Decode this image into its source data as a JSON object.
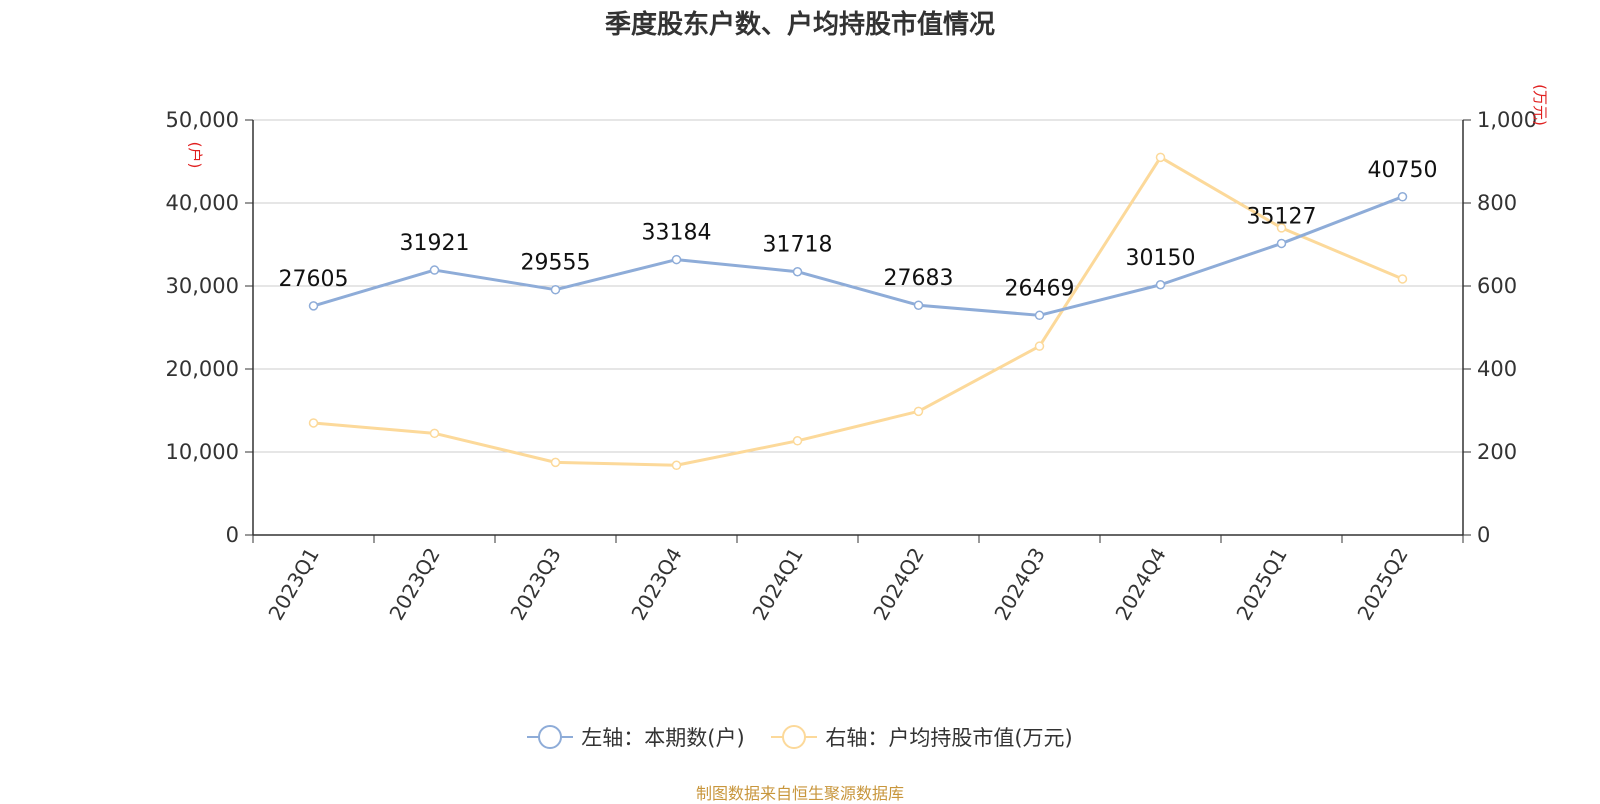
{
  "title": "季度股东户数、户均持股市值情况",
  "source": "制图数据来自恒生聚源数据库",
  "legend": {
    "left_label": "左轴：本期数(户)",
    "right_label": "右轴：户均持股市值(万元)"
  },
  "colors": {
    "series_left": "#8eacd8",
    "series_right": "#fcd99a",
    "unit_text": "#e02020",
    "source_text": "#c8963c"
  },
  "chart_data": {
    "type": "line",
    "title": "季度股东户数、户均持股市值情况",
    "categories": [
      "2023Q1",
      "2023Q2",
      "2023Q3",
      "2023Q4",
      "2024Q1",
      "2024Q2",
      "2024Q3",
      "2024Q4",
      "2025Q1",
      "2025Q2"
    ],
    "left_axis": {
      "unit": "(户)",
      "range": [
        0,
        50000
      ],
      "ticks": [
        0,
        10000,
        20000,
        30000,
        40000,
        50000
      ],
      "tick_labels": [
        "0",
        "10,000",
        "20,000",
        "30,000",
        "40,000",
        "50,000"
      ]
    },
    "right_axis": {
      "unit": "(万元)",
      "range": [
        0,
        1000
      ],
      "ticks": [
        0,
        200,
        400,
        600,
        800,
        1000
      ],
      "tick_labels": [
        "0",
        "200",
        "400",
        "600",
        "800",
        "1,000"
      ]
    },
    "series": [
      {
        "name": "左轴：本期数(户)",
        "axis": "left",
        "values": [
          27605,
          31921,
          29555,
          33184,
          31718,
          27683,
          26469,
          30150,
          35127,
          40750
        ],
        "data_labels": [
          "27605",
          "31921",
          "29555",
          "33184",
          "31718",
          "27683",
          "26469",
          "30150",
          "35127",
          "40750"
        ]
      },
      {
        "name": "右轴：户均持股市值(万元)",
        "axis": "right",
        "values": [
          270,
          245,
          175,
          168,
          227,
          298,
          455,
          910,
          740,
          617
        ]
      }
    ],
    "grid": true,
    "legend_position": "bottom"
  }
}
